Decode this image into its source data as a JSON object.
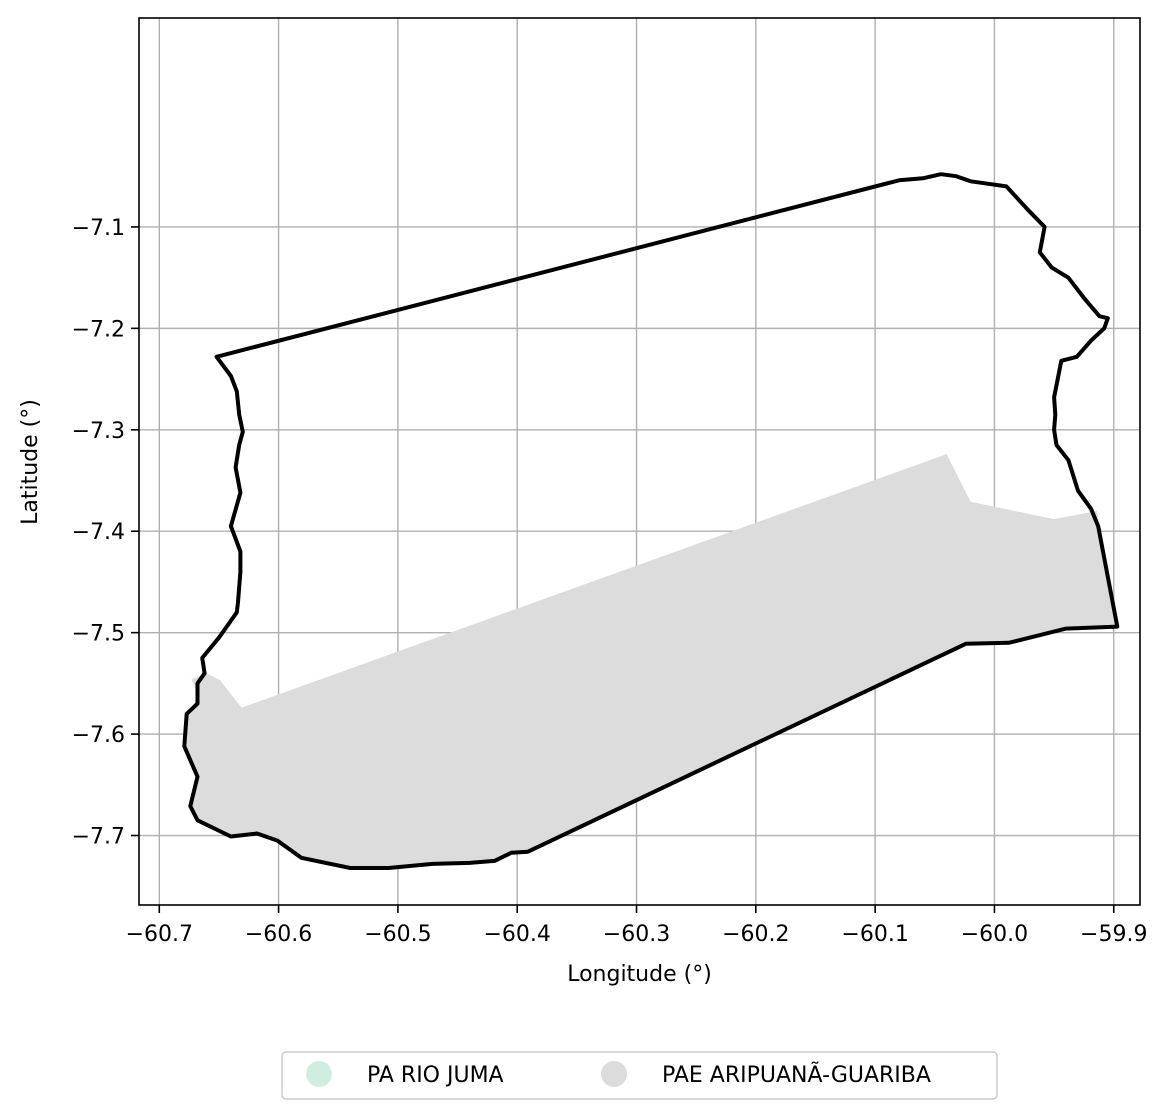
{
  "map": {
    "xlabel": "Longitude (°)",
    "ylabel": "Latitude (°)",
    "xlim": [
      -60.717,
      -59.878
    ],
    "ylim": [
      -7.7685,
      -6.894
    ],
    "x_ticks": [
      -60.7,
      -60.6,
      -60.5,
      -60.4,
      -60.3,
      -60.2,
      -60.1,
      -60.0,
      -59.9
    ],
    "x_tick_labels": [
      "−60.7",
      "−60.6",
      "−60.5",
      "−60.4",
      "−60.3",
      "−60.2",
      "−60.1",
      "−60.0",
      "−59.9"
    ],
    "y_ticks": [
      -7.1,
      -7.2,
      -7.3,
      -7.4,
      -7.5,
      -7.6,
      -7.7
    ],
    "y_tick_labels": [
      "−7.1",
      "−7.2",
      "−7.3",
      "−7.4",
      "−7.5",
      "−7.6",
      "−7.7"
    ],
    "grid": true,
    "colors": {
      "boundary": "#000000",
      "pae_fill": "#dcdcdc",
      "pa_rio_juma": "#d0eedf",
      "grid": "#b0b0b0"
    },
    "legend": {
      "placement": "bottom-center, below plot",
      "items": [
        {
          "label": "PA RIO JUMA",
          "color": "#d0eedf"
        },
        {
          "label": "PAE ARIPUANÃ-GUARIBA",
          "color": "#dcdcdc"
        }
      ]
    }
  },
  "chart_data": {
    "type": "map",
    "xlabel": "Longitude (°)",
    "ylabel": "Latitude (°)",
    "xlim": [
      -60.717,
      -59.878
    ],
    "ylim": [
      -7.7685,
      -6.894
    ],
    "grid": true,
    "legend": [
      "PA RIO JUMA",
      "PAE ARIPUANÃ-GUARIBA"
    ],
    "series": [
      {
        "name": "PAE ARIPUANÃ-GUARIBA",
        "kind": "filled-polygon",
        "coordinates": [
          [
            -60.673,
            -7.546
          ],
          [
            -60.66,
            -7.54
          ],
          [
            -60.649,
            -7.547
          ],
          [
            -60.631,
            -7.574
          ],
          [
            -60.04,
            -7.324
          ],
          [
            -60.02,
            -7.371
          ],
          [
            -59.95,
            -7.388
          ],
          [
            -59.914,
            -7.38
          ],
          [
            -59.897,
            -7.494
          ],
          [
            -59.94,
            -7.496
          ],
          [
            -59.988,
            -7.51
          ],
          [
            -60.024,
            -7.511
          ],
          [
            -60.391,
            -7.716
          ],
          [
            -60.405,
            -7.717
          ],
          [
            -60.419,
            -7.725
          ],
          [
            -60.44,
            -7.727
          ],
          [
            -60.471,
            -7.728
          ],
          [
            -60.508,
            -7.732
          ],
          [
            -60.54,
            -7.732
          ],
          [
            -60.581,
            -7.722
          ],
          [
            -60.601,
            -7.705
          ],
          [
            -60.618,
            -7.698
          ],
          [
            -60.64,
            -7.701
          ],
          [
            -60.668,
            -7.685
          ],
          [
            -60.674,
            -7.671
          ],
          [
            -60.668,
            -7.642
          ],
          [
            -60.679,
            -7.612
          ],
          [
            -60.677,
            -7.58
          ],
          [
            -60.667,
            -7.563
          ]
        ]
      },
      {
        "name": "boundary",
        "kind": "outline",
        "coordinates": [
          [
            -60.652,
            -7.228
          ],
          [
            -60.64,
            -7.247
          ],
          [
            -60.635,
            -7.262
          ],
          [
            -60.633,
            -7.285
          ],
          [
            -60.63,
            -7.302
          ],
          [
            -60.633,
            -7.315
          ],
          [
            -60.636,
            -7.337
          ],
          [
            -60.632,
            -7.362
          ],
          [
            -60.64,
            -7.395
          ],
          [
            -60.632,
            -7.42
          ],
          [
            -60.632,
            -7.44
          ],
          [
            -60.634,
            -7.47
          ],
          [
            -60.635,
            -7.48
          ],
          [
            -60.65,
            -7.505
          ],
          [
            -60.664,
            -7.525
          ],
          [
            -60.662,
            -7.54
          ],
          [
            -60.668,
            -7.55
          ],
          [
            -60.668,
            -7.57
          ],
          [
            -60.677,
            -7.58
          ],
          [
            -60.679,
            -7.612
          ],
          [
            -60.668,
            -7.642
          ],
          [
            -60.674,
            -7.671
          ],
          [
            -60.668,
            -7.685
          ],
          [
            -60.64,
            -7.701
          ],
          [
            -60.618,
            -7.698
          ],
          [
            -60.601,
            -7.705
          ],
          [
            -60.581,
            -7.722
          ],
          [
            -60.54,
            -7.732
          ],
          [
            -60.508,
            -7.732
          ],
          [
            -60.471,
            -7.728
          ],
          [
            -60.44,
            -7.727
          ],
          [
            -60.419,
            -7.725
          ],
          [
            -60.405,
            -7.717
          ],
          [
            -60.391,
            -7.716
          ],
          [
            -60.024,
            -7.511
          ],
          [
            -59.988,
            -7.51
          ],
          [
            -59.94,
            -7.496
          ],
          [
            -59.897,
            -7.494
          ],
          [
            -59.913,
            -7.395
          ],
          [
            -59.919,
            -7.378
          ],
          [
            -59.93,
            -7.36
          ],
          [
            -59.938,
            -7.33
          ],
          [
            -59.948,
            -7.315
          ],
          [
            -59.95,
            -7.3
          ],
          [
            -59.949,
            -7.285
          ],
          [
            -59.95,
            -7.268
          ],
          [
            -59.947,
            -7.25
          ],
          [
            -59.944,
            -7.232
          ],
          [
            -59.931,
            -7.228
          ],
          [
            -59.919,
            -7.212
          ],
          [
            -59.908,
            -7.2
          ],
          [
            -59.905,
            -7.19
          ],
          [
            -59.912,
            -7.188
          ],
          [
            -59.925,
            -7.17
          ],
          [
            -59.938,
            -7.15
          ],
          [
            -59.952,
            -7.14
          ],
          [
            -59.962,
            -7.125
          ],
          [
            -59.958,
            -7.1
          ],
          [
            -59.972,
            -7.083
          ],
          [
            -59.99,
            -7.06
          ],
          [
            -60.008,
            -7.057
          ],
          [
            -60.02,
            -7.055
          ],
          [
            -60.032,
            -7.05
          ],
          [
            -60.045,
            -7.048
          ],
          [
            -60.06,
            -7.052
          ],
          [
            -60.08,
            -7.054
          ],
          [
            -60.652,
            -7.228
          ]
        ]
      }
    ]
  }
}
